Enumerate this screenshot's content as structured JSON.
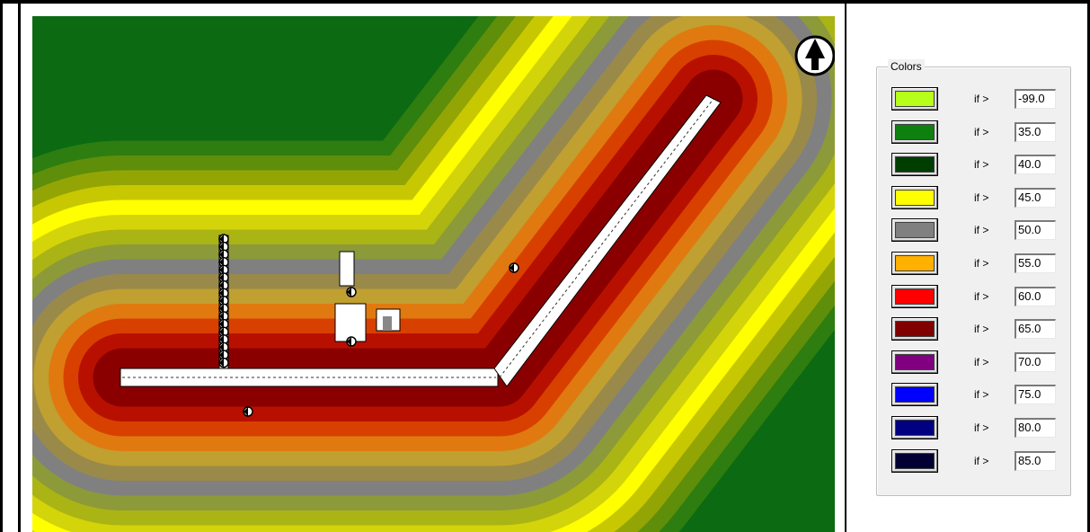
{
  "legend": {
    "title": "Colors",
    "if_label": "if >",
    "rows": [
      {
        "color": "#b5ff1a",
        "value": "-99.0"
      },
      {
        "color": "#0d8010",
        "value": "35.0"
      },
      {
        "color": "#003d00",
        "value": "40.0"
      },
      {
        "color": "#ffff00",
        "value": "45.0"
      },
      {
        "color": "#808080",
        "value": "50.0"
      },
      {
        "color": "#ffb000",
        "value": "55.0"
      },
      {
        "color": "#ff0000",
        "value": "60.0"
      },
      {
        "color": "#800000",
        "value": "65.0"
      },
      {
        "color": "#800080",
        "value": "70.0"
      },
      {
        "color": "#0000ff",
        "value": "75.0"
      },
      {
        "color": "#000080",
        "value": "80.0"
      },
      {
        "color": "#000033",
        "value": "85.0"
      }
    ]
  },
  "map": {
    "north_arrow_icon": "north-arrow-icon",
    "band_colors": [
      "#0b6a12",
      "#2d7d10",
      "#5e8e0a",
      "#93a505",
      "#c8c802",
      "#ffff00",
      "#d4d40a",
      "#aab414",
      "#8c9a3a",
      "#808080",
      "#9a8a4a",
      "#c0a030",
      "#e07a10",
      "#d84000",
      "#b81000",
      "#8a0000"
    ]
  }
}
